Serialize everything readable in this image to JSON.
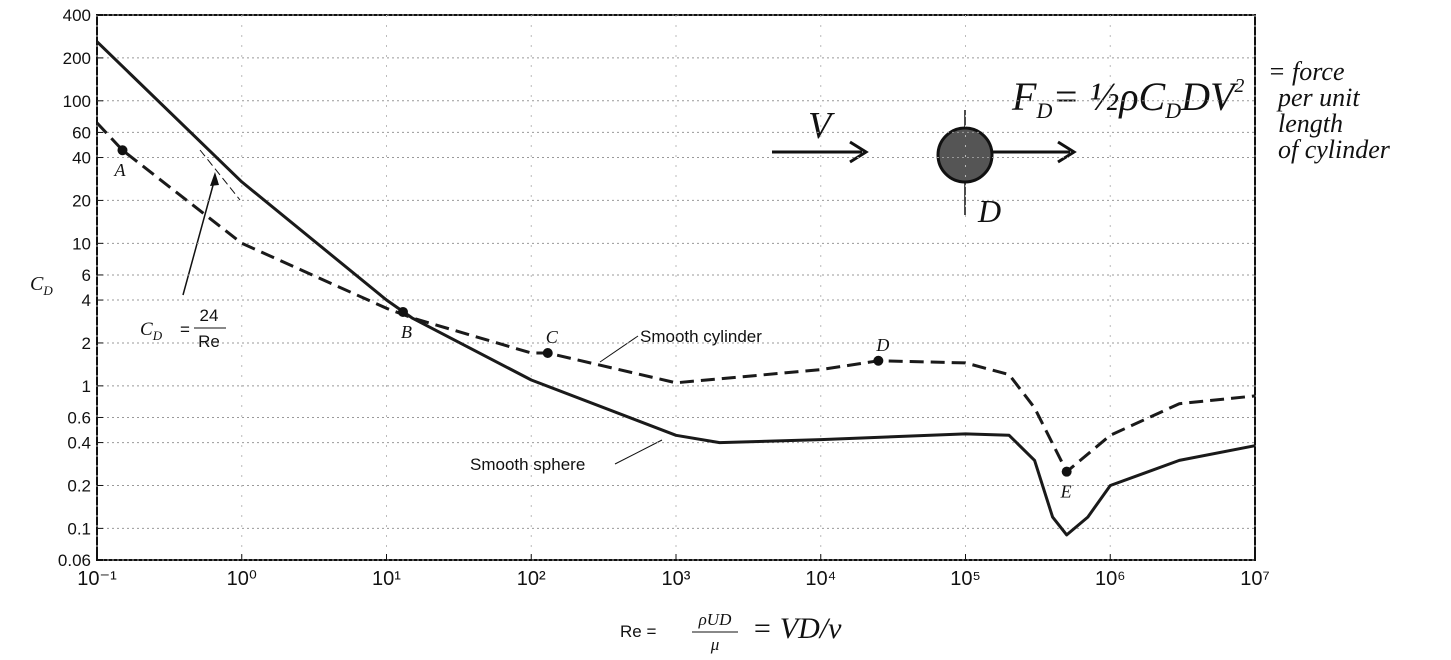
{
  "chart_data": {
    "type": "line",
    "ylabel": "C",
    "ylabel_sub": "D",
    "xlabel": "Re =",
    "xlabel_num": "ρUD",
    "xlabel_den": "μ",
    "xlabel_hand": "= VD/ν",
    "log_x": true,
    "log_y": true,
    "grid": true,
    "xlim": [
      0.1,
      10000000
    ],
    "xticks": [
      {
        "value": 0.1,
        "label": "10⁻¹"
      },
      {
        "value": 1,
        "label": "10⁰"
      },
      {
        "value": 10,
        "label": "10¹"
      },
      {
        "value": 100,
        "label": "10²"
      },
      {
        "value": 1000,
        "label": "10³"
      },
      {
        "value": 10000,
        "label": "10⁴"
      },
      {
        "value": 100000,
        "label": "10⁵"
      },
      {
        "value": 1000000,
        "label": "10⁶"
      },
      {
        "value": 10000000,
        "label": "10⁷"
      }
    ],
    "ylim": [
      0.06,
      400
    ],
    "yticks": [
      0.06,
      0.1,
      0.2,
      0.4,
      0.6,
      1,
      2,
      4,
      6,
      10,
      20,
      40,
      60,
      100,
      200,
      400
    ],
    "series": [
      {
        "name": "Smooth sphere",
        "color": "#1a1a1a",
        "dash": false,
        "x": [
          0.1,
          1,
          10,
          15,
          100,
          1000,
          2000,
          10000,
          100000,
          200000,
          300000,
          400000,
          500000,
          700000,
          1000000,
          3000000,
          10000000
        ],
        "values": [
          260,
          27,
          4,
          3,
          1.1,
          0.45,
          0.4,
          0.42,
          0.46,
          0.45,
          0.3,
          0.12,
          0.09,
          0.12,
          0.2,
          0.3,
          0.38
        ]
      },
      {
        "name": "Smooth cylinder",
        "color": "#1a1a1a",
        "dash": true,
        "x": [
          0.1,
          0.15,
          1,
          10,
          15,
          100,
          130,
          1000,
          10000,
          25000,
          100000,
          200000,
          300000,
          500000,
          1000000,
          3000000,
          10000000
        ],
        "values": [
          70,
          45,
          10,
          3.5,
          3,
          1.7,
          1.7,
          1.05,
          1.3,
          1.5,
          1.45,
          1.2,
          0.7,
          0.25,
          0.45,
          0.75,
          0.85
        ]
      }
    ],
    "points": [
      {
        "label": "A",
        "x": 0.15,
        "y": 45
      },
      {
        "label": "B",
        "x": 13,
        "y": 3.3
      },
      {
        "label": "C",
        "x": 130,
        "y": 1.7
      },
      {
        "label": "D",
        "x": 25000,
        "y": 1.5
      },
      {
        "label": "E",
        "x": 500000,
        "y": 0.25
      }
    ],
    "formula": {
      "lhs": "C",
      "lhs_sub": "D",
      "eq": "=",
      "num": "24",
      "den": "Re"
    },
    "handwritten": {
      "velocity": "V",
      "diameter": "D",
      "force_lhs": "F",
      "force_lhs_sub": "D",
      "force_rhs": "= ½ρC",
      "force_rhs_sub": "D",
      "force_tail": "DV",
      "force_exp": "2",
      "note_lines": [
        "= force",
        "per unit",
        "length",
        "of cylinder"
      ]
    }
  }
}
